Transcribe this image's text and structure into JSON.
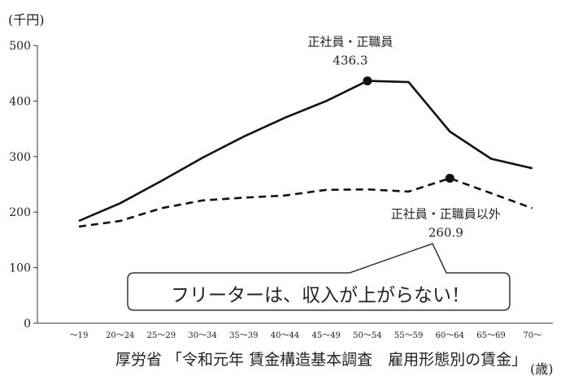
{
  "chart_data": {
    "type": "line",
    "ylabel": "(千円)",
    "xlabel": "(歳)",
    "ylim": [
      0,
      500
    ],
    "yticks": [
      0,
      100,
      200,
      300,
      400,
      500
    ],
    "grid": false,
    "categories": [
      "～19",
      "20～24",
      "25～29",
      "30～34",
      "35～39",
      "40～44",
      "45～49",
      "50～54",
      "55～59",
      "60～64",
      "65～69",
      "70～"
    ],
    "series": [
      {
        "name": "正社員・正職員",
        "style": "solid",
        "color": "#111111",
        "values": [
          184,
          216,
          256,
          298,
          336,
          370,
          400,
          436.3,
          434,
          345,
          296,
          279
        ]
      },
      {
        "name": "正社員・正職員以外",
        "style": "dashed",
        "color": "#111111",
        "values": [
          174,
          184,
          207,
          221,
          226,
          230,
          240,
          241,
          237,
          260.9,
          234,
          207
        ]
      }
    ],
    "annotations": [
      {
        "series": 0,
        "index": 7,
        "label": "正社員・正職員",
        "value_label": "436.3"
      },
      {
        "series": 1,
        "index": 9,
        "label": "正社員・正職員以外",
        "value_label": "260.9"
      }
    ],
    "callout": "フリーターは、収入が上がらない！"
  },
  "source": "厚労省 「令和元年 賃金構造基本調査　雇用形態別の賃金」"
}
